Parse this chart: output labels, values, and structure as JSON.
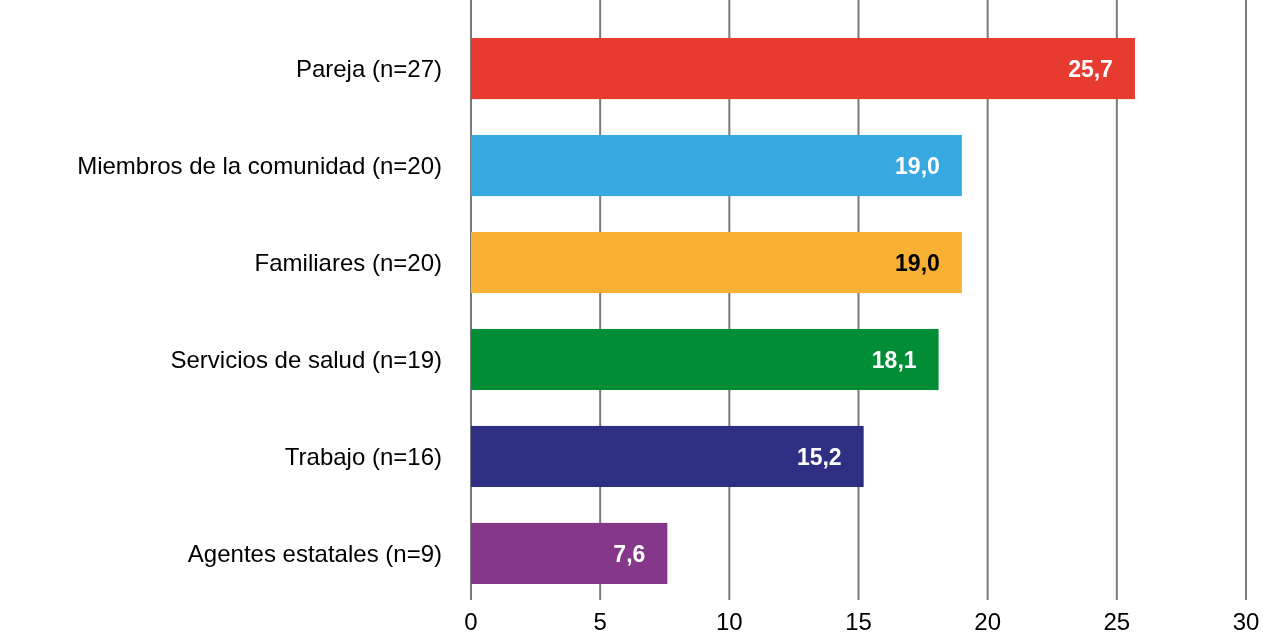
{
  "chart_data": {
    "type": "bar",
    "orientation": "horizontal",
    "categories": [
      "Pareja (n=27)",
      "Miembros de la comunidad (n=20)",
      "Familiares (n=20)",
      "Servicios de salud (n=19)",
      "Trabajo (n=16)",
      "Agentes estatales (n=9)"
    ],
    "values": [
      25.7,
      19.0,
      19.0,
      18.1,
      15.2,
      7.6
    ],
    "value_labels": [
      "25,7",
      "19,0",
      "19,0",
      "18,1",
      "15,2",
      "7,6"
    ],
    "colors": [
      "#e63b2e",
      "#38a8e0",
      "#f8b133",
      "#008d36",
      "#2e2e82",
      "#853889"
    ],
    "xlim": [
      0,
      30
    ],
    "xticks": [
      0,
      5,
      10,
      15,
      20,
      25,
      30
    ],
    "grid": "x"
  }
}
